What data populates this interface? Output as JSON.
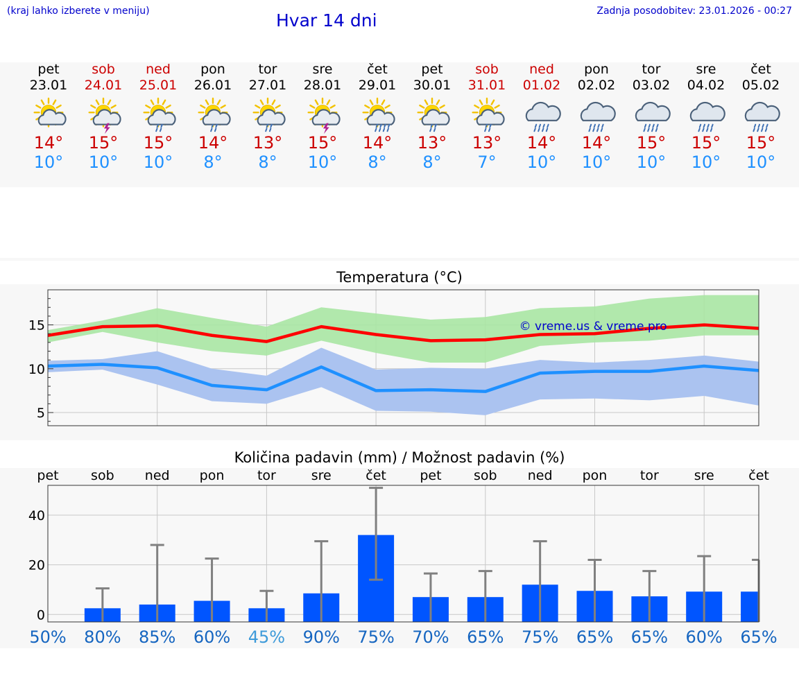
{
  "header": {
    "note": "(kraj lahko izberete v meniju)",
    "title": "Hvar 14 dni",
    "last_update": "Zadnja posodobitev: 23.01.2026 - 00:27"
  },
  "days": [
    {
      "name": "pet",
      "date": "23.01",
      "weekend": false,
      "icon": "sun-cloud-icon",
      "max": "14°",
      "min": "10°"
    },
    {
      "name": "sob",
      "date": "24.01",
      "weekend": true,
      "icon": "sun-cloud-thunder-icon",
      "max": "15°",
      "min": "10°"
    },
    {
      "name": "ned",
      "date": "25.01",
      "weekend": true,
      "icon": "sun-cloud-rain-icon",
      "max": "15°",
      "min": "10°"
    },
    {
      "name": "pon",
      "date": "26.01",
      "weekend": false,
      "icon": "sun-cloud-rain-icon",
      "max": "14°",
      "min": "8°"
    },
    {
      "name": "tor",
      "date": "27.01",
      "weekend": false,
      "icon": "sun-cloud-rain-icon",
      "max": "13°",
      "min": "8°"
    },
    {
      "name": "sre",
      "date": "28.01",
      "weekend": false,
      "icon": "sun-cloud-thunder-icon",
      "max": "15°",
      "min": "10°"
    },
    {
      "name": "čet",
      "date": "29.01",
      "weekend": false,
      "icon": "sun-cloud-heavy-rain-icon",
      "max": "14°",
      "min": "8°"
    },
    {
      "name": "pet",
      "date": "30.01",
      "weekend": false,
      "icon": "sun-cloud-rain-icon",
      "max": "13°",
      "min": "8°"
    },
    {
      "name": "sob",
      "date": "31.01",
      "weekend": true,
      "icon": "sun-cloud-rain-icon",
      "max": "13°",
      "min": "7°"
    },
    {
      "name": "ned",
      "date": "01.02",
      "weekend": true,
      "icon": "cloud-rain-icon",
      "max": "14°",
      "min": "10°"
    },
    {
      "name": "pon",
      "date": "02.02",
      "weekend": false,
      "icon": "cloud-rain-icon",
      "max": "14°",
      "min": "10°"
    },
    {
      "name": "tor",
      "date": "03.02",
      "weekend": false,
      "icon": "cloud-rain-icon",
      "max": "15°",
      "min": "10°"
    },
    {
      "name": "sre",
      "date": "04.02",
      "weekend": false,
      "icon": "cloud-rain-icon",
      "max": "15°",
      "min": "10°"
    },
    {
      "name": "čet",
      "date": "05.02",
      "weekend": false,
      "icon": "cloud-rain-icon",
      "max": "15°",
      "min": "10°"
    }
  ],
  "colors": {
    "max_temp": "#ff0000",
    "min_temp": "#1e90ff",
    "max_band": "#a8e6a3",
    "min_band": "#abc3f0",
    "overlap_band": "#7dc4a8",
    "precip_bar": "#0055ff",
    "error_bar": "#808080",
    "chance_high": "#1565c0",
    "chance_low": "#3d9ad9"
  },
  "chart_data": [
    {
      "type": "line",
      "title": "Temperatura (°C)",
      "watermark": "© vreme.us & vreme.pro",
      "yticks": [
        5,
        10,
        15
      ],
      "ylim": [
        3.5,
        19
      ],
      "x": [
        0,
        1,
        2,
        3,
        4,
        5,
        6,
        7,
        8,
        9,
        10,
        11,
        12,
        13
      ],
      "series": [
        {
          "name": "max",
          "values": [
            13.8,
            14.8,
            14.9,
            13.8,
            13.1,
            14.8,
            13.9,
            13.2,
            13.3,
            13.9,
            14.0,
            14.6,
            15.0,
            14.6
          ]
        },
        {
          "name": "min",
          "values": [
            10.3,
            10.5,
            10.1,
            8.1,
            7.6,
            10.2,
            7.5,
            7.6,
            7.4,
            9.5,
            9.7,
            9.7,
            10.3,
            9.8
          ]
        }
      ],
      "max_band_upper": [
        14.4,
        15.5,
        16.9,
        15.8,
        14.8,
        17.0,
        16.3,
        15.6,
        15.9,
        16.9,
        17.1,
        18.0,
        18.4,
        18.4
      ],
      "max_band_lower": [
        13.0,
        14.2,
        13.0,
        12.0,
        11.5,
        13.2,
        11.8,
        10.7,
        10.7,
        12.6,
        13.0,
        13.2,
        13.8,
        13.8
      ],
      "min_band_upper": [
        10.9,
        11.1,
        12.0,
        10.0,
        9.2,
        12.4,
        9.9,
        10.1,
        10.0,
        11.0,
        10.7,
        11.0,
        11.5,
        10.8
      ],
      "min_band_lower": [
        9.6,
        9.9,
        8.2,
        6.3,
        6.0,
        7.9,
        5.2,
        5.1,
        4.7,
        6.5,
        6.6,
        6.4,
        6.9,
        5.8
      ]
    },
    {
      "type": "bar",
      "title": "Količina padavin (mm) / Možnost padavin (%)",
      "categories": [
        "pet",
        "sob",
        "ned",
        "pon",
        "tor",
        "sre",
        "čet",
        "pet",
        "sob",
        "ned",
        "pon",
        "tor",
        "sre",
        "čet"
      ],
      "yticks": [
        0,
        20,
        40
      ],
      "ylim": [
        -3,
        52
      ],
      "values": [
        0,
        2.5,
        4,
        5.5,
        2.5,
        8.5,
        32,
        7,
        7,
        12,
        9.5,
        7.3,
        9.2,
        9.2
      ],
      "error_upper": [
        0,
        10.5,
        28,
        22.5,
        9.5,
        29.5,
        51,
        16.5,
        17.5,
        29.5,
        22,
        17.5,
        23.5,
        22
      ],
      "error_lower": [
        0,
        0,
        0,
        0,
        0,
        0,
        14,
        0,
        0,
        0,
        0,
        0,
        0,
        0
      ],
      "chance": [
        "50%",
        "80%",
        "85%",
        "60%",
        "45%",
        "90%",
        "75%",
        "70%",
        "65%",
        "75%",
        "65%",
        "65%",
        "60%",
        "65%"
      ]
    }
  ]
}
